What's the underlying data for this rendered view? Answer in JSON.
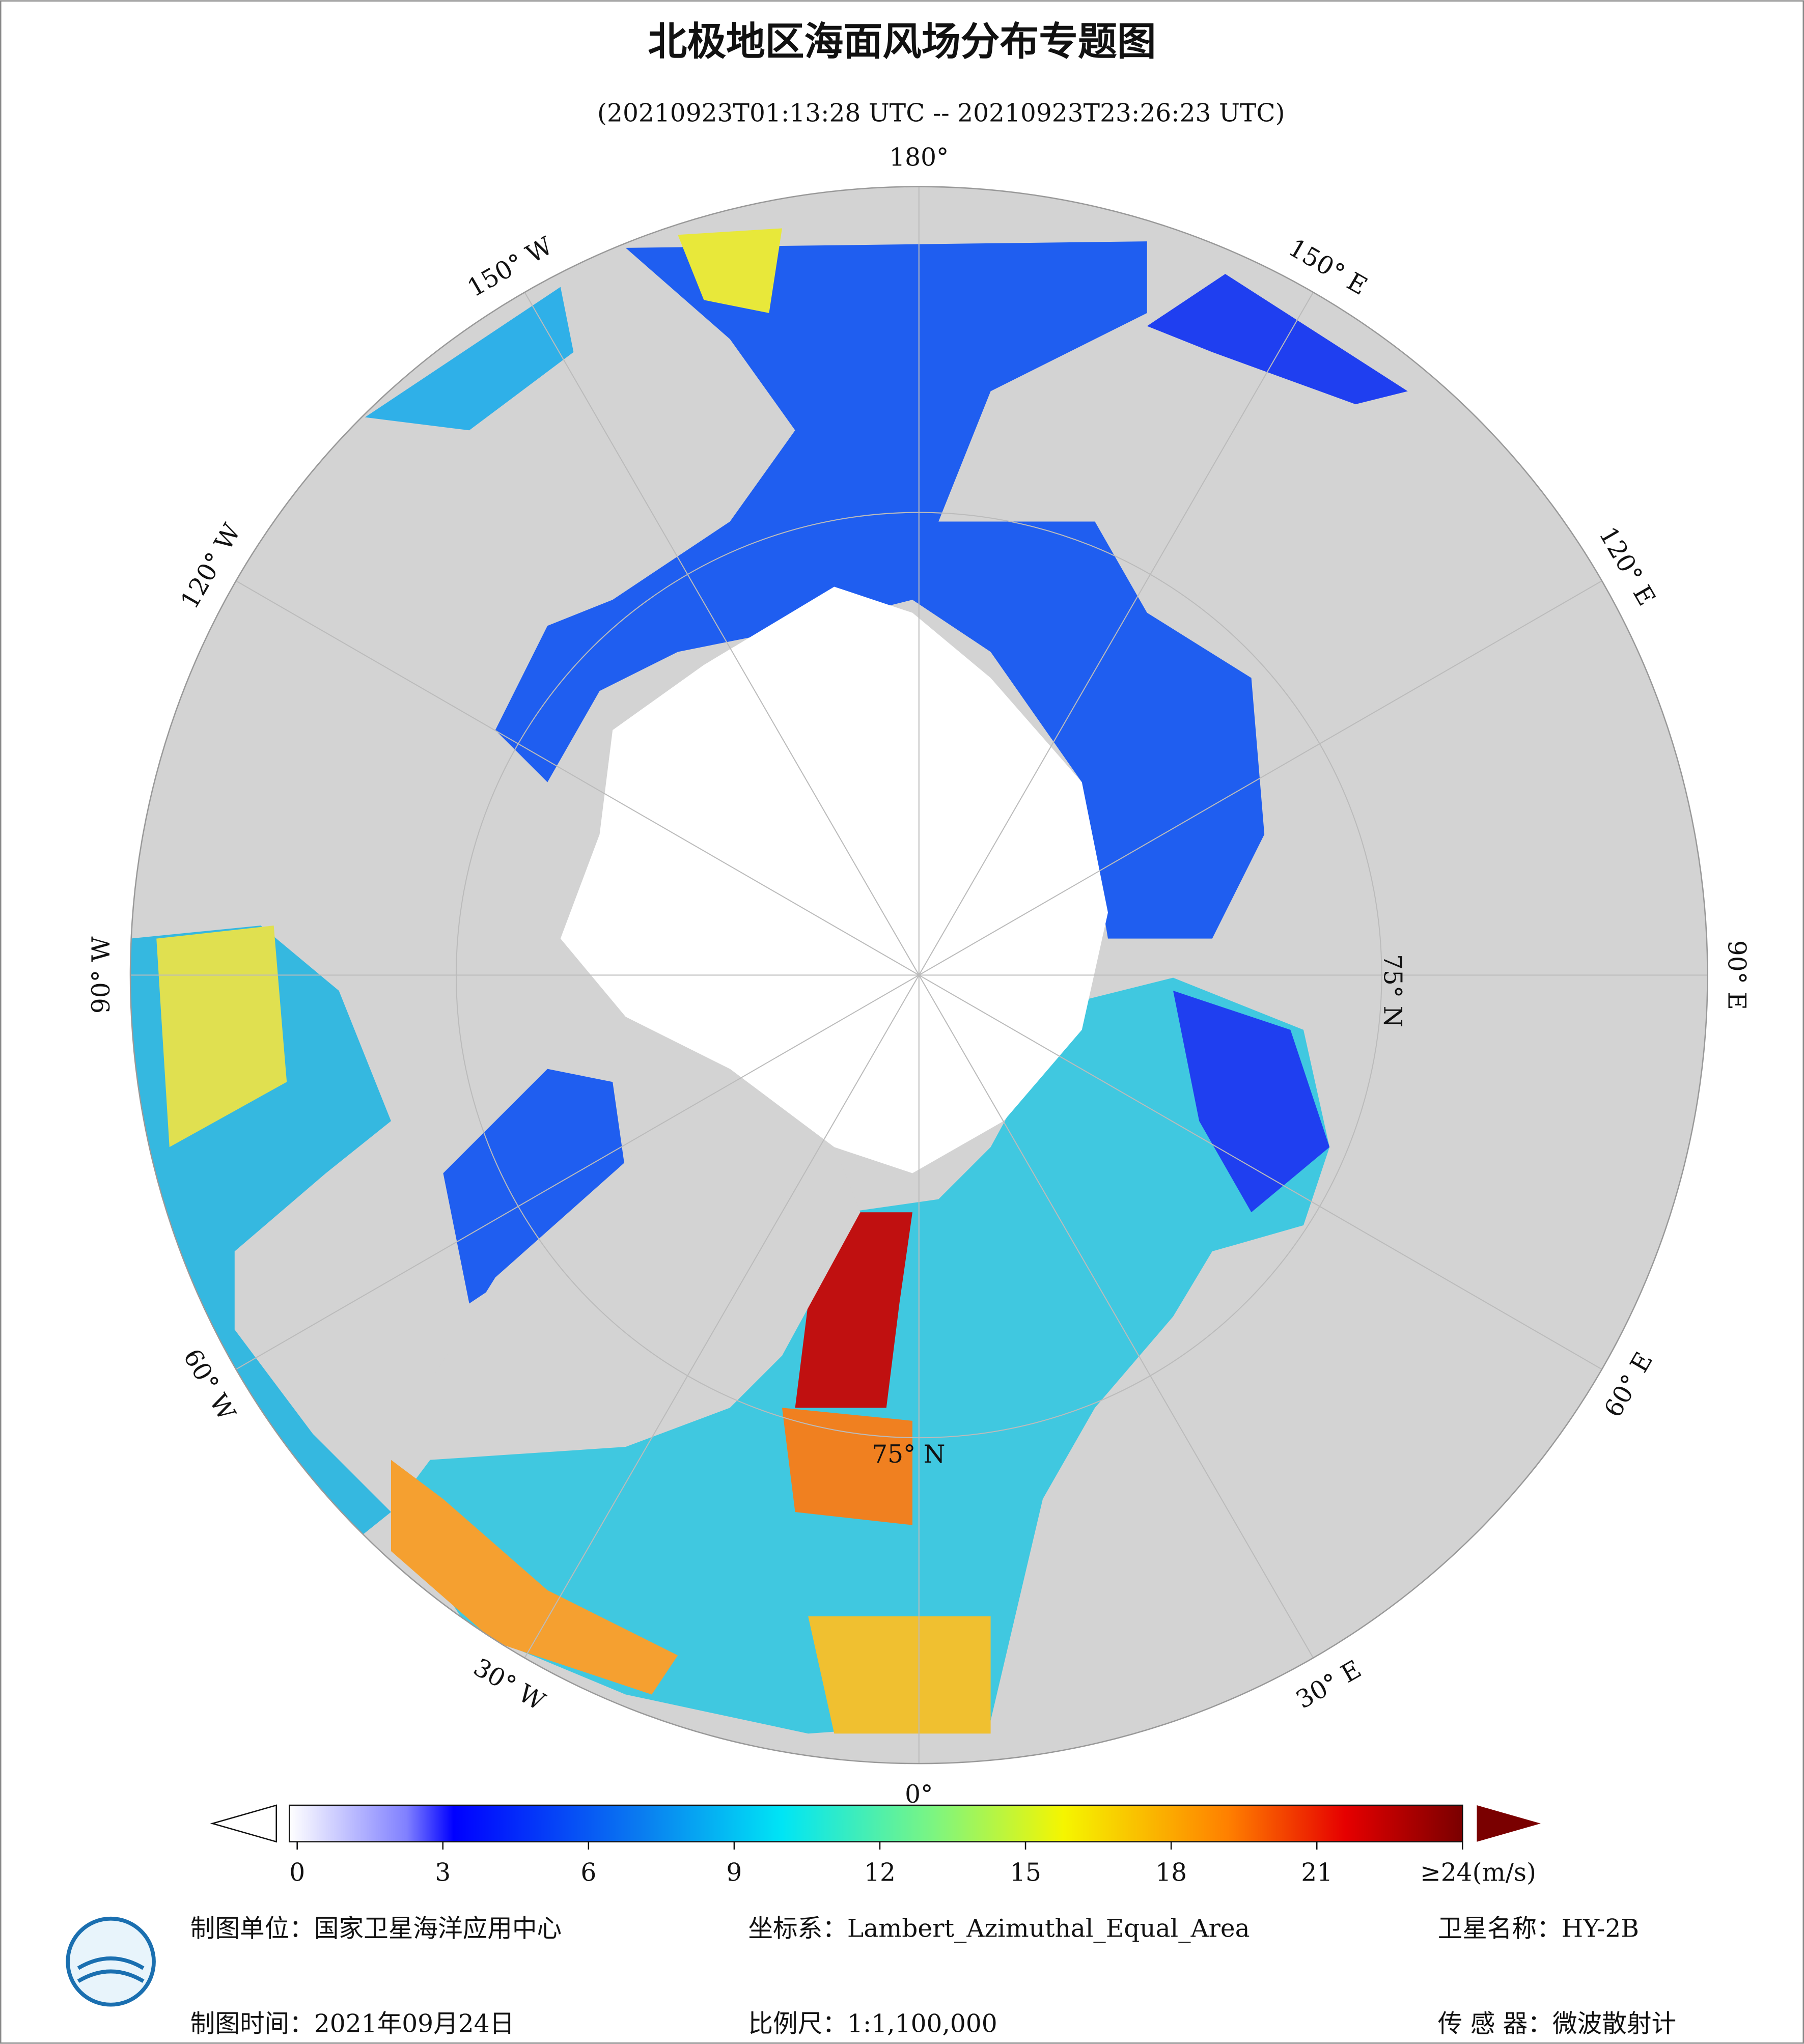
{
  "title": "北极地区海面风场分布专题图",
  "subtitle": "(20210923T01:13:28 UTC -- 20210923T23:26:23 UTC)",
  "map": {
    "graticule_labels": [
      "0°",
      "30° E",
      "60° E",
      "90° E",
      "120° E",
      "150° E",
      "180°",
      "150° W",
      "120° W",
      "90° W",
      "60° W",
      "30° W"
    ],
    "latitude_labels": [
      "75° N",
      "75° N"
    ]
  },
  "colorbar": {
    "xlim": [
      0,
      24
    ],
    "ticks": [
      0,
      3,
      6,
      9,
      12,
      15,
      18,
      21,
      {
        "value": 24,
        "label": "≥24(m/s)"
      }
    ]
  },
  "footer": {
    "unit": "制图单位：国家卫星海洋应用中心",
    "projection": "坐标系：Lambert_Azimuthal_Equal_Area",
    "satellite": "卫星名称：HY-2B",
    "date": "制图时间：2021年09月24日",
    "scale": "比例尺：1:1,100,000",
    "sensor": "传 感 器：微波散射计"
  }
}
